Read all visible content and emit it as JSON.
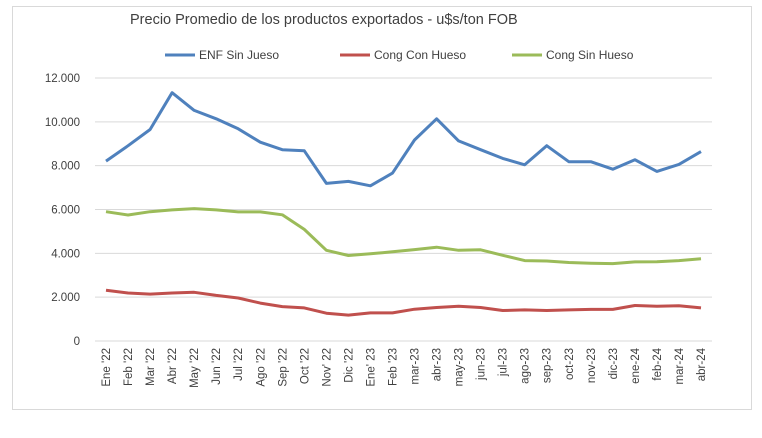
{
  "chart_data": {
    "type": "line",
    "title": "Precio Promedio de los productos exportados - u$s/ton FOB",
    "xlabel": "",
    "ylabel": "",
    "ylim": [
      0,
      12000
    ],
    "yticks": [
      "0",
      "2.000",
      "4.000",
      "6.000",
      "8.000",
      "10.000",
      "12.000"
    ],
    "grid": true,
    "legend_position": "top",
    "categories": [
      "Ene '22",
      "Feb '22",
      "Mar '22",
      "Abr '22",
      "May '22",
      "Jun '22",
      "Jul '22",
      "Ago '22",
      "Sep '22",
      "Oct '22",
      "Nov' 22",
      "Dic '22",
      "Ene' 23",
      "Feb '23",
      "mar-23",
      "abr-23",
      "may-23",
      "jun-23",
      "jul-23",
      "ago-23",
      "sep-23",
      "oct-23",
      "nov-23",
      "dic-23",
      "ene-24",
      "feb-24",
      "mar-24",
      "abr-24"
    ],
    "series": [
      {
        "name": "ENF Sin Jueso",
        "color": "#4f81bd",
        "values": [
          8210,
          8910,
          9650,
          11330,
          10520,
          10140,
          9680,
          9070,
          8730,
          8680,
          7190,
          7280,
          7080,
          7660,
          9170,
          10140,
          9130,
          8730,
          8330,
          8040,
          8910,
          8180,
          8180,
          7840,
          8270,
          7740,
          8060,
          8640
        ]
      },
      {
        "name": "Cong Con Hueso",
        "color": "#c0504d",
        "values": [
          2320,
          2190,
          2140,
          2190,
          2220,
          2080,
          1960,
          1730,
          1570,
          1510,
          1270,
          1180,
          1280,
          1280,
          1450,
          1530,
          1590,
          1530,
          1390,
          1420,
          1390,
          1420,
          1440,
          1440,
          1620,
          1590,
          1610,
          1510
        ]
      },
      {
        "name": "Cong Sin Hueso",
        "color": "#9bbb59",
        "values": [
          5900,
          5750,
          5900,
          5980,
          6040,
          5980,
          5890,
          5890,
          5760,
          5090,
          4140,
          3900,
          3980,
          4070,
          4170,
          4280,
          4140,
          4160,
          3910,
          3670,
          3650,
          3580,
          3550,
          3530,
          3610,
          3620,
          3670,
          3750
        ]
      }
    ]
  }
}
